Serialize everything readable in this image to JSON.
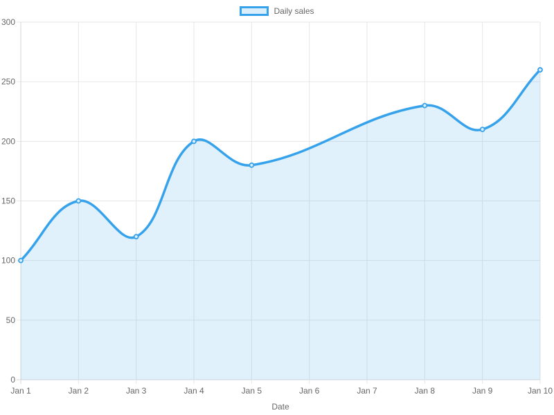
{
  "legend": {
    "items": [
      {
        "label": "Daily sales"
      }
    ]
  },
  "chart_data": {
    "type": "area",
    "title": "",
    "xlabel": "Date",
    "ylabel": "",
    "categories": [
      "Jan 1",
      "Jan 2",
      "Jan 3",
      "Jan 4",
      "Jan 5",
      "Jan 6",
      "Jan 7",
      "Jan 8",
      "Jan 9",
      "Jan 10"
    ],
    "series": [
      {
        "name": "Daily sales",
        "values": [
          100,
          150,
          120,
          200,
          180,
          null,
          null,
          230,
          210,
          260
        ]
      }
    ],
    "ylim": [
      0,
      300
    ],
    "y_ticks": [
      0,
      50,
      100,
      150,
      200,
      250,
      300
    ],
    "grid": true,
    "legend_position": "top",
    "smooth_tension": 0.4,
    "colors": {
      "line": "#36A2EB",
      "area_fill": "rgba(54,162,235,0.15)",
      "point_fill": "#DCEDFB",
      "grid": "#E6E6E6",
      "axis_zero": "#D6D6D6",
      "tick_text": "#666666"
    }
  }
}
